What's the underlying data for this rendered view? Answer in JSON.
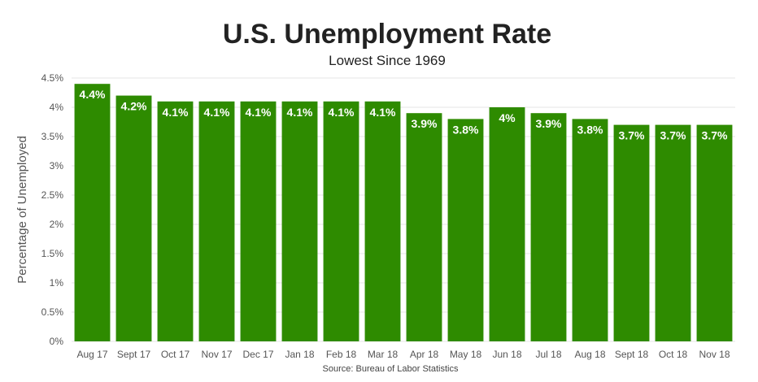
{
  "chart_data": {
    "type": "bar",
    "title": "U.S. Unemployment Rate",
    "subtitle": "Lowest Since 1969",
    "ylabel": "Percentage of Unemployed",
    "xlabel": "",
    "source": "Source: Bureau of Labor Statistics",
    "categories": [
      "Aug 17",
      "Sept 17",
      "Oct 17",
      "Nov 17",
      "Dec 17",
      "Jan 18",
      "Feb 18",
      "Mar 18",
      "Apr 18",
      "May 18",
      "Jun 18",
      "Jul 18",
      "Aug 18",
      "Sept 18",
      "Oct 18",
      "Nov 18"
    ],
    "values": [
      4.4,
      4.2,
      4.1,
      4.1,
      4.1,
      4.1,
      4.1,
      4.1,
      3.9,
      3.8,
      4.0,
      3.9,
      3.8,
      3.7,
      3.7,
      3.7
    ],
    "value_labels": [
      "4.4%",
      "4.2%",
      "4.1%",
      "4.1%",
      "4.1%",
      "4.1%",
      "4.1%",
      "4.1%",
      "3.9%",
      "3.8%",
      "4%",
      "3.9%",
      "3.8%",
      "3.7%",
      "3.7%",
      "3.7%"
    ],
    "ylim": [
      0,
      4.5
    ],
    "yticks": [
      0,
      0.5,
      1,
      1.5,
      2,
      2.5,
      3,
      3.5,
      4,
      4.5
    ],
    "ytick_labels": [
      "0%",
      "0.5%",
      "1%",
      "1.5%",
      "2%",
      "2.5%",
      "3%",
      "3.5%",
      "4%",
      "4.5%"
    ],
    "grid": true,
    "legend": "none",
    "colors": {
      "bar": "#2e8b00"
    }
  }
}
